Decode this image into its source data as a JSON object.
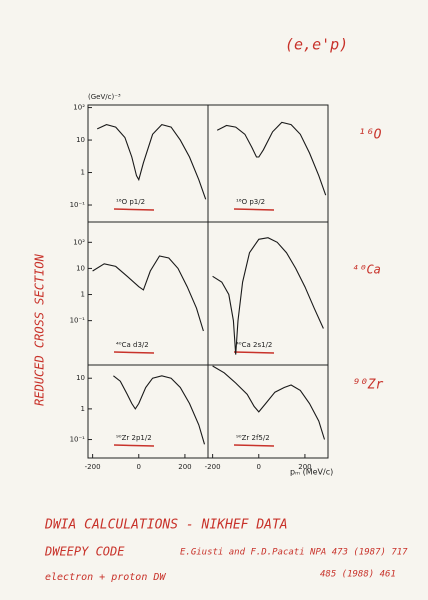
{
  "page": {
    "y_unit": "(GeV/c)⁻³",
    "reaction": "(e,e'p)",
    "nucleus_labels": [
      "¹⁶O",
      "⁴⁰Ca",
      "⁹⁰Zr"
    ],
    "y_axis_title": "REDUCED CROSS SECTION",
    "x_axis_title": "pₘ (MeV/c)",
    "footer": [
      "DWIA CALCULATIONS - NIKHEF DATA",
      "DWEEPY CODE",
      "E.Giusti and F.D.Pacati NPA 473 (1987) 717",
      "485 (1988) 461",
      "electron + proton DW"
    ]
  },
  "chart_data": [
    {
      "type": "line",
      "annotation": "¹⁶O p1/2",
      "log_y": true,
      "color": "#1a1a1a",
      "x": [
        -180,
        -140,
        -100,
        -60,
        -30,
        -10,
        0,
        20,
        60,
        100,
        140,
        180,
        220,
        260,
        290
      ],
      "values": [
        22,
        30,
        25,
        12,
        3,
        0.8,
        0.6,
        2,
        15,
        30,
        25,
        10,
        3,
        0.6,
        0.15
      ],
      "xlim": [
        -220,
        300
      ],
      "ylim": [
        0.03,
        120
      ],
      "yticks": [
        {
          "value": 100,
          "label": "10²"
        },
        10,
        1,
        {
          "value": 0.1,
          "label": "10⁻¹"
        }
      ]
    },
    {
      "type": "line",
      "annotation": "¹⁶O p3/2",
      "log_y": true,
      "color": "#1a1a1a",
      "x": [
        -180,
        -140,
        -100,
        -60,
        -30,
        -10,
        0,
        20,
        60,
        100,
        140,
        180,
        220,
        260,
        290
      ],
      "values": [
        20,
        28,
        25,
        15,
        6,
        3,
        3,
        5,
        18,
        35,
        30,
        15,
        4,
        0.8,
        0.2
      ],
      "xlim": [
        -220,
        300
      ],
      "ylim": [
        0.03,
        120
      ]
    },
    {
      "type": "line",
      "annotation": "⁴⁰Ca d3/2",
      "log_y": true,
      "color": "#1a1a1a",
      "x": [
        -200,
        -150,
        -100,
        -50,
        0,
        20,
        50,
        90,
        130,
        170,
        210,
        250,
        280
      ],
      "values": [
        8,
        15,
        12,
        5,
        2,
        1.5,
        8,
        30,
        25,
        10,
        2,
        0.3,
        0.04
      ],
      "xlim": [
        -220,
        300
      ],
      "ylim": [
        0.002,
        600
      ],
      "yticks": [
        {
          "value": 100,
          "label": "10²"
        },
        10,
        1,
        {
          "value": 0.1,
          "label": "10⁻¹"
        }
      ]
    },
    {
      "type": "line",
      "annotation": "⁴⁰Ca 2s1/2",
      "log_y": true,
      "color": "#1a1a1a",
      "x": [
        -200,
        -160,
        -130,
        -110,
        -100,
        -90,
        -70,
        -40,
        0,
        40,
        80,
        120,
        160,
        200,
        240,
        280
      ],
      "values": [
        5,
        3,
        1,
        0.1,
        0.005,
        0.1,
        3,
        40,
        130,
        150,
        100,
        40,
        10,
        2,
        0.3,
        0.05
      ],
      "xlim": [
        -220,
        300
      ],
      "ylim": [
        0.002,
        600
      ]
    },
    {
      "type": "line",
      "annotation": "⁹⁰Zr 2p1/2",
      "log_y": true,
      "color": "#1a1a1a",
      "x": [
        -110,
        -80,
        -50,
        -30,
        -15,
        0,
        30,
        60,
        100,
        140,
        180,
        220,
        260,
        285
      ],
      "values": [
        12,
        8,
        3,
        1.5,
        1,
        1.5,
        5,
        10,
        12,
        10,
        5,
        1.5,
        0.3,
        0.07
      ],
      "xlim": [
        -220,
        300
      ],
      "ylim": [
        0.025,
        27
      ],
      "yticks": [
        10,
        1,
        {
          "value": 0.1,
          "label": "10⁻¹"
        }
      ],
      "xticks": [
        -200,
        0,
        200
      ]
    },
    {
      "type": "line",
      "annotation": "⁹⁰Zr 2f5/2",
      "log_y": true,
      "color": "#1a1a1a",
      "x": [
        -200,
        -150,
        -100,
        -50,
        -20,
        0,
        30,
        70,
        110,
        140,
        180,
        220,
        260,
        285
      ],
      "values": [
        25,
        15,
        7,
        3,
        1.2,
        0.8,
        1.5,
        3.5,
        5,
        6,
        4,
        1.5,
        0.4,
        0.1
      ],
      "xlim": [
        -220,
        300
      ],
      "ylim": [
        0.025,
        27
      ],
      "xticks": [
        -200,
        0,
        200
      ]
    }
  ]
}
